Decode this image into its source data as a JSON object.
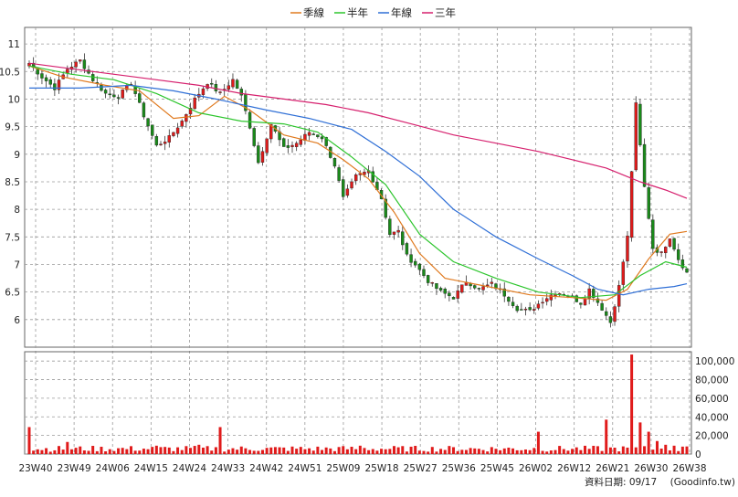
{
  "legend": [
    {
      "label": "季線",
      "color": "#e07a1f"
    },
    {
      "label": "半年",
      "color": "#2cc52c"
    },
    {
      "label": "年線",
      "color": "#2f6fd6"
    },
    {
      "label": "三年",
      "color": "#d6206e"
    }
  ],
  "footer": {
    "date_label": "資料日期: 09/17",
    "source": "(Goodinfo.tw)"
  },
  "colors": {
    "up": "#e01b1b",
    "down": "#1a8a1a",
    "volume": "#e01b1b",
    "grid": "#9a9a9a"
  },
  "chart_data": [
    {
      "type": "candlestick",
      "ylim": [
        5.5,
        11.3
      ],
      "y_ticks": [
        "6",
        "6.5",
        "7",
        "7.5",
        "8",
        "8.5",
        "9",
        "9.5",
        "10",
        "10.5",
        "11"
      ],
      "x_tick_labels": [
        "23W40",
        "23W49",
        "24W06",
        "24W15",
        "24W24",
        "24W33",
        "24W42",
        "24W51",
        "25W09",
        "25W18",
        "25W27",
        "25W36",
        "25W45",
        "26W02",
        "26W12",
        "26W21",
        "26W30",
        "26W38"
      ],
      "grid": true,
      "legend_position": "top-center",
      "close_path": [
        [
          0,
          10.65
        ],
        [
          3,
          10.4
        ],
        [
          6,
          10.2
        ],
        [
          9,
          10.55
        ],
        [
          12,
          10.7
        ],
        [
          15,
          10.35
        ],
        [
          18,
          10.1
        ],
        [
          21,
          10.05
        ],
        [
          24,
          10.3
        ],
        [
          27,
          9.7
        ],
        [
          30,
          9.15
        ],
        [
          33,
          9.3
        ],
        [
          36,
          9.6
        ],
        [
          39,
          10.0
        ],
        [
          42,
          10.3
        ],
        [
          45,
          10.1
        ],
        [
          48,
          10.35
        ],
        [
          50,
          10.05
        ],
        [
          52,
          9.5
        ],
        [
          54,
          8.85
        ],
        [
          57,
          9.55
        ],
        [
          60,
          9.1
        ],
        [
          63,
          9.2
        ],
        [
          66,
          9.4
        ],
        [
          69,
          9.3
        ],
        [
          72,
          8.8
        ],
        [
          74,
          8.2
        ],
        [
          77,
          8.6
        ],
        [
          80,
          8.7
        ],
        [
          83,
          8.2
        ],
        [
          85,
          7.55
        ],
        [
          87,
          7.6
        ],
        [
          89,
          7.15
        ],
        [
          91,
          7.0
        ],
        [
          94,
          6.7
        ],
        [
          97,
          6.5
        ],
        [
          100,
          6.4
        ],
        [
          103,
          6.7
        ],
        [
          106,
          6.55
        ],
        [
          109,
          6.65
        ],
        [
          112,
          6.45
        ],
        [
          115,
          6.2
        ],
        [
          118,
          6.15
        ],
        [
          121,
          6.35
        ],
        [
          124,
          6.5
        ],
        [
          127,
          6.45
        ],
        [
          130,
          6.3
        ],
        [
          132,
          6.55
        ],
        [
          135,
          6.2
        ],
        [
          137,
          5.95
        ],
        [
          139,
          6.6
        ],
        [
          141,
          7.5
        ],
        [
          143,
          9.9
        ],
        [
          145,
          8.4
        ],
        [
          147,
          7.3
        ],
        [
          149,
          7.2
        ],
        [
          151,
          7.5
        ],
        [
          153,
          7.1
        ],
        [
          155,
          6.85
        ]
      ],
      "moving_averages": [
        {
          "name": "季線",
          "points": [
            [
              0,
              10.6
            ],
            [
              8,
              10.4
            ],
            [
              18,
              10.25
            ],
            [
              26,
              10.15
            ],
            [
              34,
              9.65
            ],
            [
              40,
              9.7
            ],
            [
              46,
              10.05
            ],
            [
              52,
              9.8
            ],
            [
              60,
              9.35
            ],
            [
              68,
              9.2
            ],
            [
              74,
              8.9
            ],
            [
              80,
              8.55
            ],
            [
              86,
              7.95
            ],
            [
              92,
              7.2
            ],
            [
              98,
              6.75
            ],
            [
              108,
              6.6
            ],
            [
              118,
              6.45
            ],
            [
              128,
              6.4
            ],
            [
              136,
              6.35
            ],
            [
              141,
              6.55
            ],
            [
              146,
              7.1
            ],
            [
              151,
              7.55
            ],
            [
              155,
              7.6
            ]
          ]
        },
        {
          "name": "半年",
          "points": [
            [
              0,
              10.6
            ],
            [
              10,
              10.45
            ],
            [
              20,
              10.35
            ],
            [
              30,
              10.1
            ],
            [
              40,
              9.75
            ],
            [
              50,
              9.6
            ],
            [
              60,
              9.55
            ],
            [
              68,
              9.4
            ],
            [
              76,
              8.95
            ],
            [
              84,
              8.45
            ],
            [
              92,
              7.55
            ],
            [
              100,
              7.05
            ],
            [
              110,
              6.75
            ],
            [
              120,
              6.5
            ],
            [
              130,
              6.4
            ],
            [
              138,
              6.45
            ],
            [
              144,
              6.8
            ],
            [
              150,
              7.05
            ],
            [
              155,
              6.95
            ]
          ]
        },
        {
          "name": "年線",
          "points": [
            [
              0,
              10.2
            ],
            [
              12,
              10.2
            ],
            [
              24,
              10.25
            ],
            [
              34,
              10.15
            ],
            [
              44,
              10.0
            ],
            [
              56,
              9.8
            ],
            [
              66,
              9.65
            ],
            [
              76,
              9.45
            ],
            [
              84,
              9.05
            ],
            [
              92,
              8.6
            ],
            [
              100,
              8.0
            ],
            [
              110,
              7.5
            ],
            [
              120,
              7.1
            ],
            [
              128,
              6.8
            ],
            [
              134,
              6.55
            ],
            [
              140,
              6.45
            ],
            [
              146,
              6.55
            ],
            [
              152,
              6.6
            ],
            [
              155,
              6.65
            ]
          ]
        },
        {
          "name": "三年",
          "points": [
            [
              0,
              10.65
            ],
            [
              10,
              10.55
            ],
            [
              20,
              10.45
            ],
            [
              30,
              10.35
            ],
            [
              40,
              10.25
            ],
            [
              50,
              10.1
            ],
            [
              60,
              10.0
            ],
            [
              70,
              9.9
            ],
            [
              80,
              9.75
            ],
            [
              90,
              9.55
            ],
            [
              100,
              9.35
            ],
            [
              110,
              9.2
            ],
            [
              120,
              9.05
            ],
            [
              128,
              8.9
            ],
            [
              136,
              8.75
            ],
            [
              144,
              8.5
            ],
            [
              150,
              8.35
            ],
            [
              155,
              8.2
            ]
          ]
        }
      ],
      "volume": {
        "ylim": [
          0,
          110000
        ],
        "y_ticks": [
          "100,000",
          "80,000",
          "60,000",
          "40,000",
          "20,000",
          "0"
        ],
        "spikes": [
          [
            0,
            29000
          ],
          [
            9,
            13000
          ],
          [
            30,
            9000
          ],
          [
            40,
            10000
          ],
          [
            45,
            29000
          ],
          [
            78,
            9000
          ],
          [
            120,
            24000
          ],
          [
            136,
            37000
          ],
          [
            142,
            107000
          ],
          [
            144,
            34000
          ],
          [
            146,
            24000
          ],
          [
            148,
            14000
          ],
          [
            150,
            10000
          ],
          [
            152,
            9000
          ],
          [
            154,
            8000
          ]
        ]
      }
    }
  ]
}
